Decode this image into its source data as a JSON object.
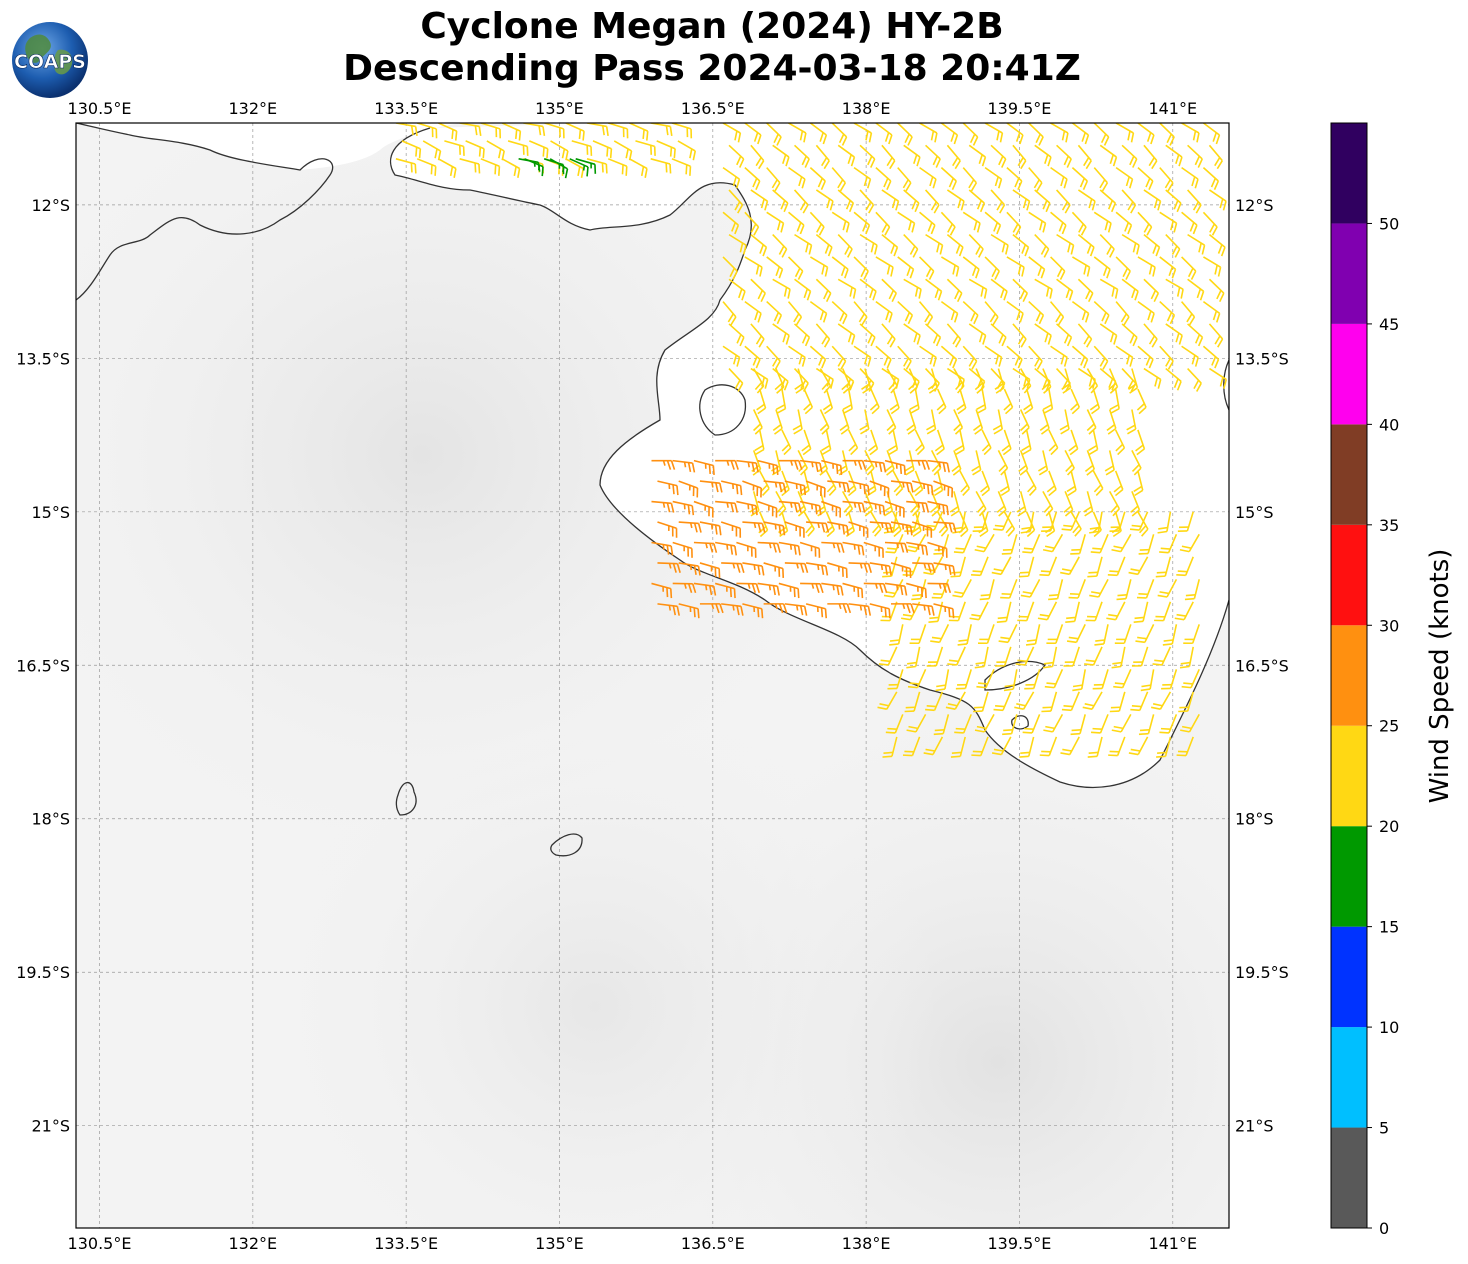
{
  "title": {
    "line1": "Cyclone Megan (2024) HY-2B",
    "line2": "Descending Pass 2024-03-18 20:41Z"
  },
  "logo": {
    "text": "COAPS"
  },
  "map": {
    "lon_range": [
      130.27,
      141.55
    ],
    "lat_range": [
      -22.0,
      -11.2
    ],
    "lon_ticks": [
      {
        "value": 130.5,
        "label": "130.5°E"
      },
      {
        "value": 132.0,
        "label": "132°E"
      },
      {
        "value": 133.5,
        "label": "133.5°E"
      },
      {
        "value": 135.0,
        "label": "135°E"
      },
      {
        "value": 136.5,
        "label": "136.5°E"
      },
      {
        "value": 138.0,
        "label": "138°E"
      },
      {
        "value": 139.5,
        "label": "139.5°E"
      },
      {
        "value": 141.0,
        "label": "141°E"
      }
    ],
    "lat_ticks": [
      {
        "value": -12.0,
        "label": "12°S"
      },
      {
        "value": -13.5,
        "label": "13.5°S"
      },
      {
        "value": -15.0,
        "label": "15°S"
      },
      {
        "value": -16.5,
        "label": "16.5°S"
      },
      {
        "value": -18.0,
        "label": "18°S"
      },
      {
        "value": -19.5,
        "label": "19.5°S"
      },
      {
        "value": -21.0,
        "label": "21°S"
      }
    ],
    "gridlines": true,
    "background": "grayscale infrared (mostly light gray)",
    "coastline_color": "#333333"
  },
  "colorbar": {
    "label": "Wind Speed (knots)",
    "bins": [
      {
        "min": 0,
        "max": 5,
        "color": "#595959"
      },
      {
        "min": 5,
        "max": 10,
        "color": "#00bfff"
      },
      {
        "min": 10,
        "max": 15,
        "color": "#0033ff"
      },
      {
        "min": 15,
        "max": 20,
        "color": "#009900"
      },
      {
        "min": 20,
        "max": 25,
        "color": "#ffd814"
      },
      {
        "min": 25,
        "max": 30,
        "color": "#ff9010"
      },
      {
        "min": 30,
        "max": 35,
        "color": "#ff1010"
      },
      {
        "min": 35,
        "max": 40,
        "color": "#803d25"
      },
      {
        "min": 40,
        "max": 45,
        "color": "#ff00ee"
      },
      {
        "min": 45,
        "max": 50,
        "color": "#8000b0"
      },
      {
        "min": 50,
        "max": 55,
        "color": "#300060"
      }
    ],
    "tick_labels": [
      "0",
      "5",
      "10",
      "15",
      "20",
      "25",
      "30",
      "35",
      "40",
      "45",
      "50"
    ]
  },
  "wind_barbs": {
    "description_color_scale": "colored by wind speed bin",
    "zones": [
      {
        "name": "north-gulf",
        "lon": [
          133.4,
          136.1
        ],
        "lat": [
          -11.2,
          -11.55
        ],
        "speed": 22,
        "direction_from": 110
      },
      {
        "name": "north-gulf-green",
        "lon": [
          134.6,
          135.1
        ],
        "lat": [
          -11.55,
          -11.55
        ],
        "speed": 18,
        "direction_from": 110
      },
      {
        "name": "east-gulf",
        "lon": [
          136.6,
          141.3
        ],
        "lat": [
          -11.2,
          -13.6
        ],
        "speed": 22,
        "direction_from": 130
      },
      {
        "name": "central-gulf",
        "lon": [
          136.9,
          140.6
        ],
        "lat": [
          -13.6,
          -15.0
        ],
        "speed": 22,
        "direction_from": 160
      },
      {
        "name": "south-gulf",
        "lon": [
          138.3,
          141.2
        ],
        "lat": [
          -15.0,
          -17.2
        ],
        "speed": 22,
        "direction_from": 200
      },
      {
        "name": "southwest-gulf",
        "lon": [
          135.9,
          138.6
        ],
        "lat": [
          -14.5,
          -15.9
        ],
        "speed": 27,
        "direction_from": 100
      }
    ]
  }
}
